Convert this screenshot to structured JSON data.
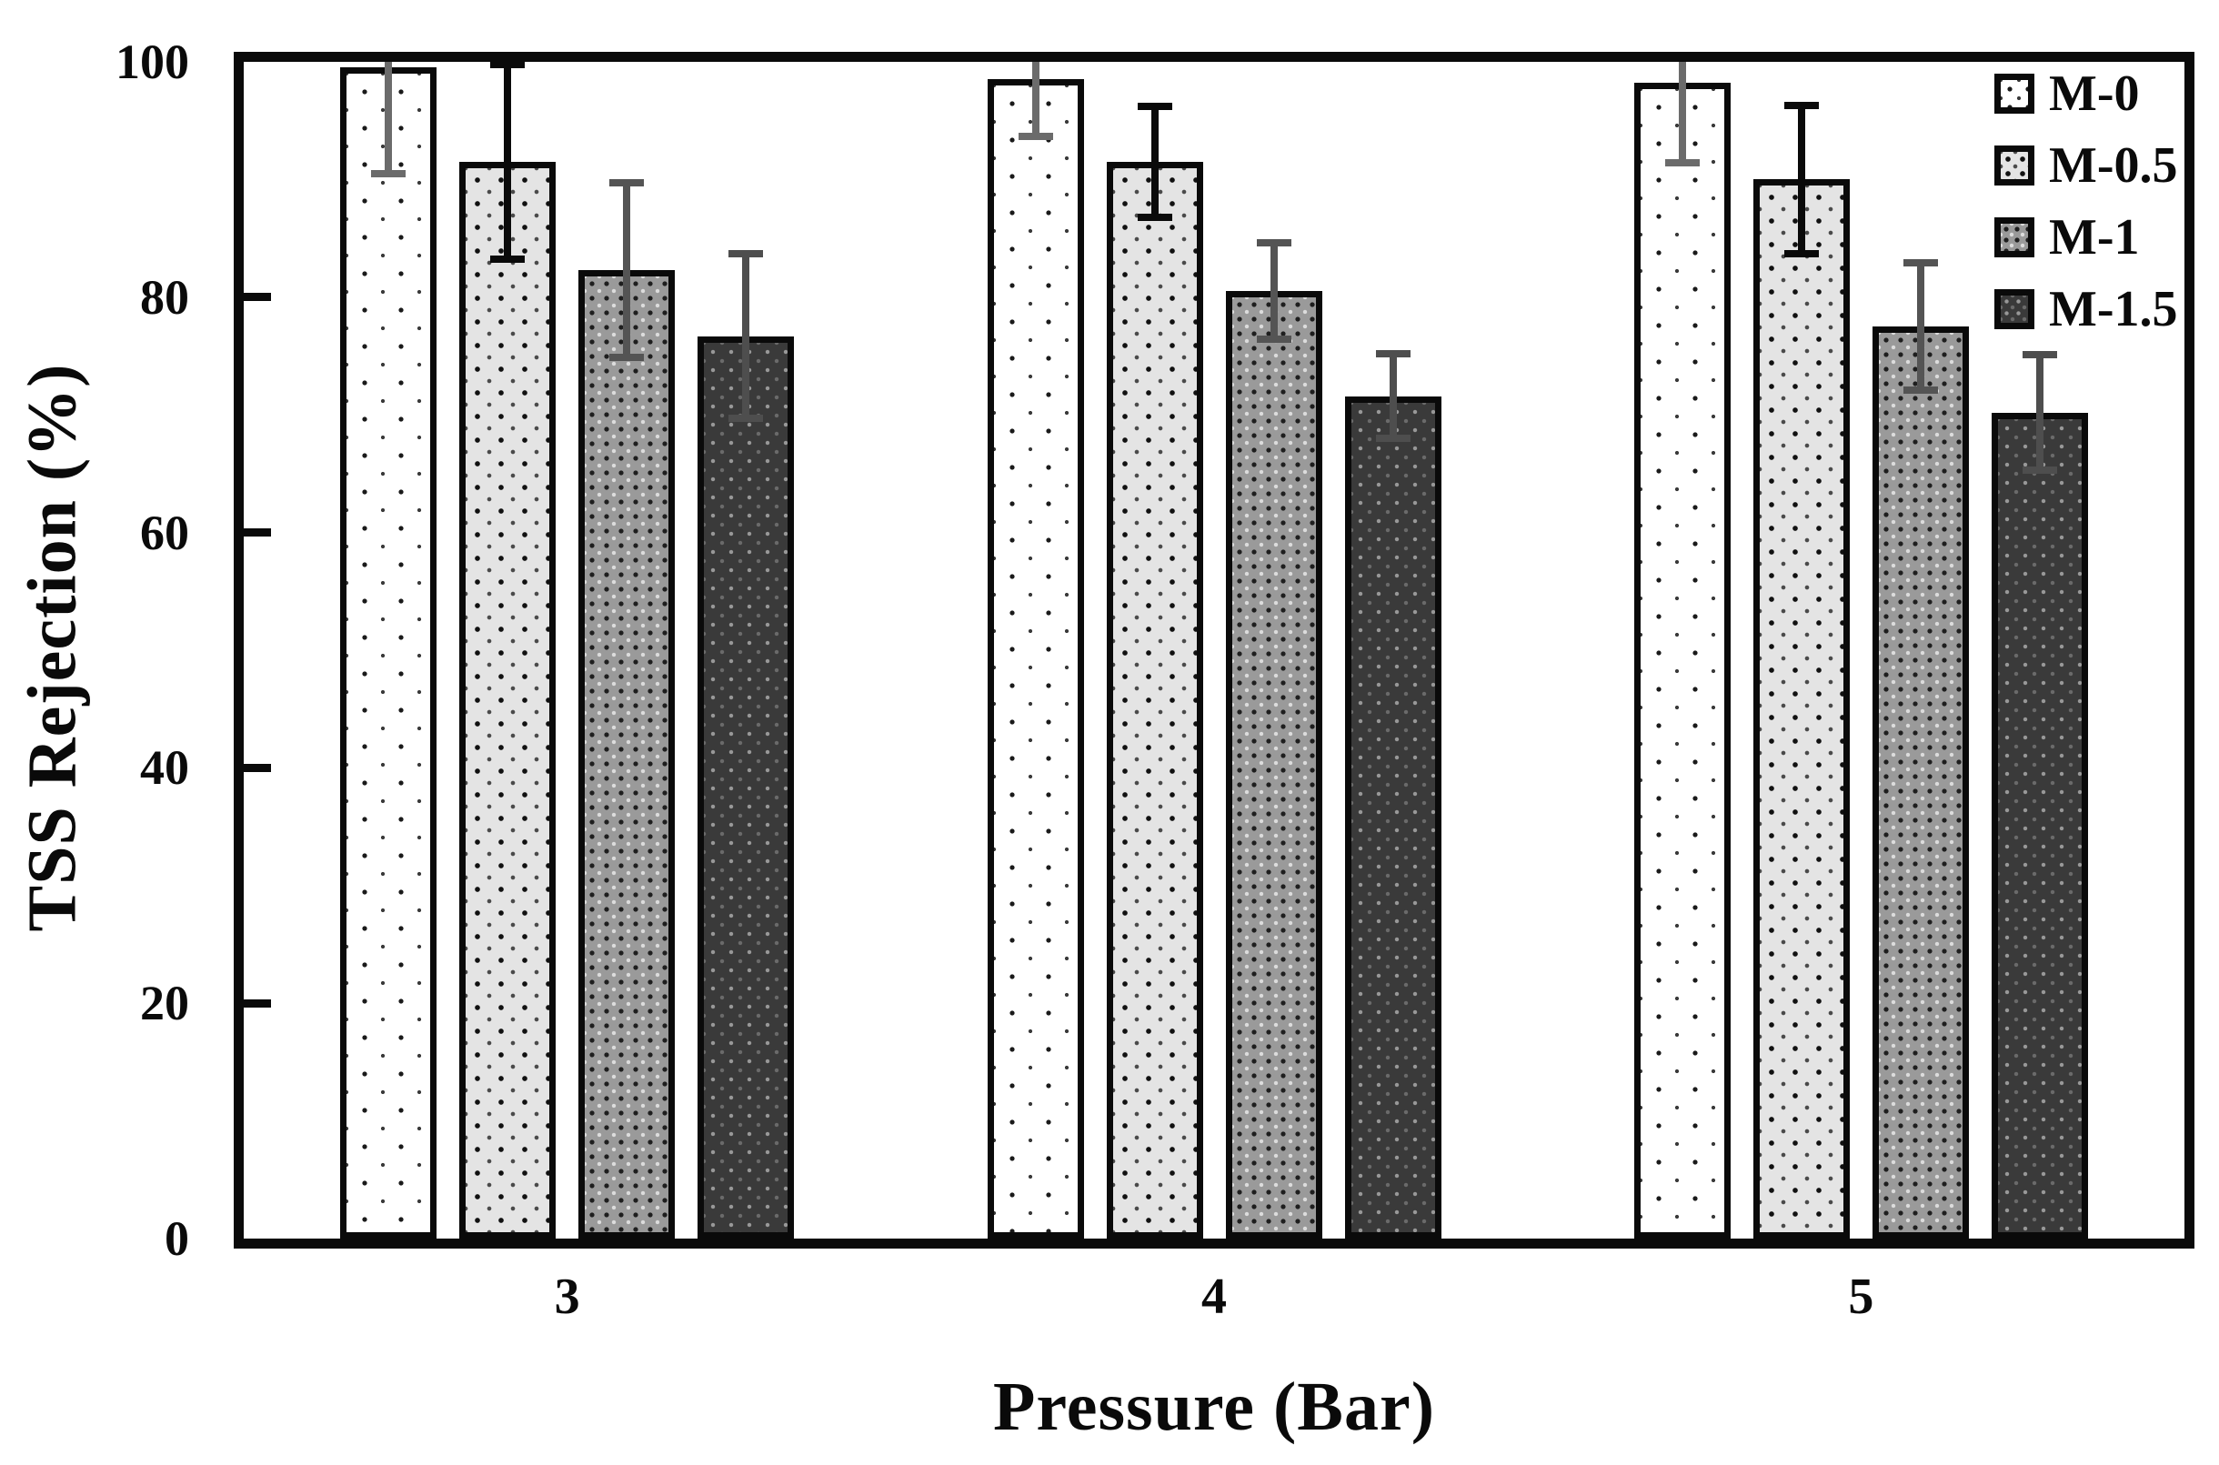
{
  "chart_data": {
    "type": "bar",
    "title": "",
    "xlabel": "Pressure (Bar)",
    "ylabel": "TSS Rejection (%)",
    "categories": [
      "3",
      "4",
      "5"
    ],
    "y_ticks": [
      0,
      20,
      40,
      60,
      80,
      100
    ],
    "ylim": [
      0,
      100
    ],
    "grid": false,
    "legend_position": "top-right-inside",
    "series": [
      {
        "name": "M-0",
        "pattern": "dot-sparse-white",
        "css_fill": "fill-m0",
        "error_color": "#6b6b6b",
        "values": [
          99.5,
          98.5,
          98.2
        ],
        "errors": [
          9.0,
          4.8,
          6.8
        ]
      },
      {
        "name": "M-0.5",
        "pattern": "dot-light-gray",
        "css_fill": "fill-m05",
        "error_color": "#0a0a0a",
        "values": [
          91.5,
          91.5,
          90.0
        ],
        "errors": [
          8.3,
          4.7,
          6.3
        ]
      },
      {
        "name": "M-1",
        "pattern": "weave-mid-gray",
        "css_fill": "fill-m1",
        "error_color": "#545454",
        "values": [
          82.3,
          80.5,
          77.5
        ],
        "errors": [
          7.4,
          4.1,
          5.4
        ]
      },
      {
        "name": "M-1.5",
        "pattern": "weave-dark-gray",
        "css_fill": "fill-m15",
        "error_color": "#4e4e4e",
        "values": [
          76.7,
          71.6,
          70.2
        ],
        "errors": [
          7.0,
          3.6,
          4.9
        ]
      }
    ],
    "frame_color": "#0a0a0a",
    "background_color": "#ffffff"
  }
}
